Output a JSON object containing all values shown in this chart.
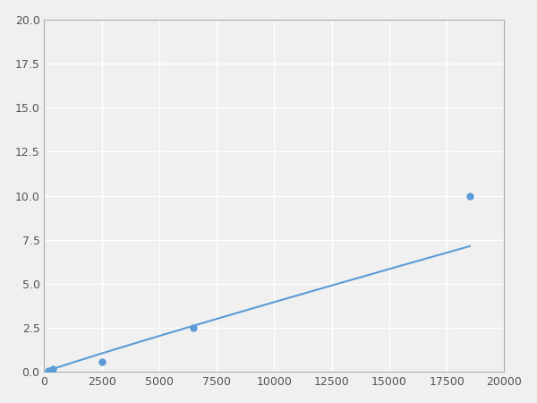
{
  "x": [
    185,
    370,
    2500,
    6500,
    18500
  ],
  "y": [
    0.1,
    0.2,
    0.6,
    2.5,
    10.0
  ],
  "line_color": "#5b9bd5",
  "marker_color": "#5b9bd5",
  "marker_size": 5,
  "line_width": 1.5,
  "xlim": [
    0,
    20000
  ],
  "ylim": [
    0,
    20
  ],
  "xticks": [
    0,
    2500,
    5000,
    7500,
    10000,
    12500,
    15000,
    17500,
    20000
  ],
  "yticks": [
    0.0,
    2.5,
    5.0,
    7.5,
    10.0,
    12.5,
    15.0,
    17.5,
    20.0
  ],
  "background_color": "#f0f0f0",
  "grid_color": "#ffffff",
  "spine_color": "#aaaaaa"
}
